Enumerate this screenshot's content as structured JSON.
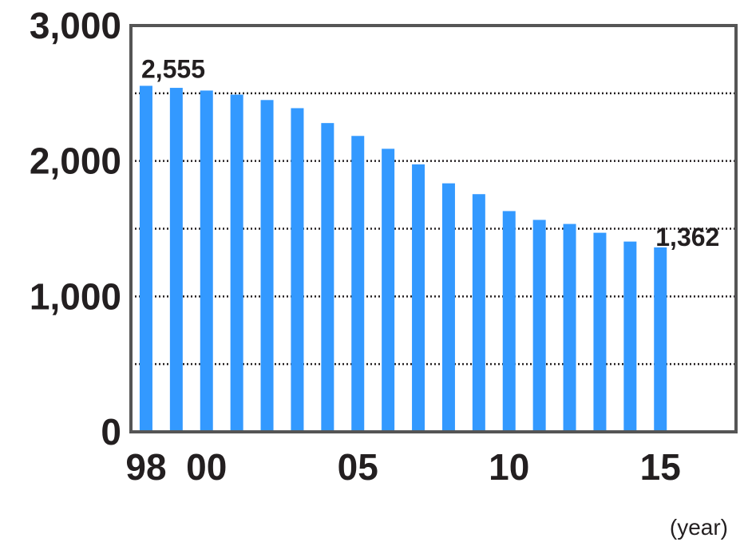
{
  "chart_data": {
    "type": "bar",
    "x": [
      1998,
      1999,
      2000,
      2001,
      2002,
      2003,
      2004,
      2005,
      2006,
      2007,
      2008,
      2009,
      2010,
      2011,
      2012,
      2013,
      2014,
      2015
    ],
    "values": [
      2555,
      2540,
      2520,
      2490,
      2450,
      2390,
      2280,
      2185,
      2090,
      1975,
      1835,
      1755,
      1630,
      1565,
      1535,
      1470,
      1405,
      1362
    ],
    "ylim": [
      0,
      3000
    ],
    "xlim": [
      1997.5,
      2017.5
    ],
    "yticks": [
      0,
      1000,
      2000,
      3000
    ],
    "ytick_labels": [
      "0",
      "1,000",
      "2,000",
      "3,000"
    ],
    "gridlines": [
      500,
      1000,
      1500,
      2000,
      2500
    ],
    "xticks": [
      1998,
      2000,
      2005,
      2010,
      2015
    ],
    "xtick_labels": [
      "98",
      "00",
      "05",
      "10",
      "15"
    ],
    "data_labels": [
      {
        "x": 1998,
        "text": "2,555"
      },
      {
        "x": 2015,
        "text": "1,362"
      }
    ],
    "unit_label": "(year)",
    "grid": "dotted horizontal",
    "bar_color": "#3399ff",
    "frame_color": "#555555",
    "text_color": "#231f20"
  }
}
